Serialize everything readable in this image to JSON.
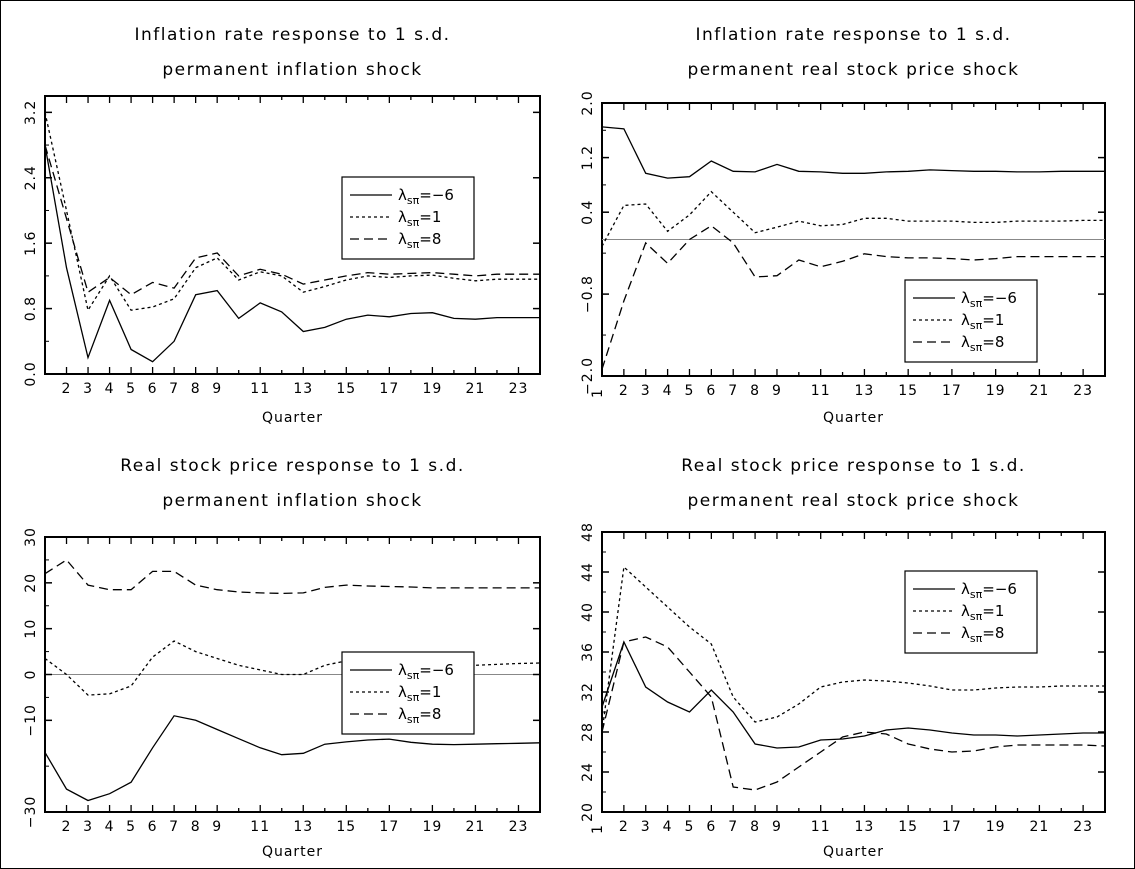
{
  "chart_data": [
    {
      "type": "line",
      "title": [
        "Inflation rate response to 1 s.d.",
        "permanent inflation shock"
      ],
      "xlabel": "Quarter",
      "ylabel": "",
      "x": [
        1,
        2,
        3,
        4,
        5,
        6,
        7,
        8,
        9,
        10,
        11,
        12,
        13,
        14,
        15,
        16,
        17,
        18,
        19,
        20,
        21,
        22,
        23,
        24
      ],
      "xticks": [
        2,
        3,
        4,
        5,
        6,
        7,
        8,
        9,
        11,
        13,
        15,
        17,
        19,
        21,
        23
      ],
      "xlim": [
        1,
        24
      ],
      "ylim": [
        0,
        3.4
      ],
      "yticks": [
        "0.0",
        "0.8",
        "1.6",
        "2.4",
        "3.2"
      ],
      "zero_line": false,
      "legend": {
        "position": "right-middle"
      },
      "series": [
        {
          "name": "λsπ=−6",
          "dash": "solid",
          "values": [
            2.8,
            1.3,
            0.2,
            0.9,
            0.3,
            0.15,
            0.4,
            0.97,
            1.02,
            0.68,
            0.87,
            0.76,
            0.52,
            0.57,
            0.67,
            0.72,
            0.7,
            0.74,
            0.75,
            0.68,
            0.67,
            0.69,
            0.69,
            0.69
          ]
        },
        {
          "name": "λsπ=1",
          "dash": "short",
          "values": [
            3.2,
            2.0,
            0.78,
            1.2,
            0.78,
            0.82,
            0.92,
            1.3,
            1.42,
            1.15,
            1.25,
            1.2,
            1.0,
            1.07,
            1.15,
            1.2,
            1.18,
            1.2,
            1.21,
            1.17,
            1.14,
            1.16,
            1.16,
            1.16
          ]
        },
        {
          "name": "λsπ=8",
          "dash": "long",
          "values": [
            2.8,
            1.9,
            1.0,
            1.18,
            0.97,
            1.12,
            1.05,
            1.42,
            1.48,
            1.2,
            1.28,
            1.22,
            1.1,
            1.15,
            1.2,
            1.24,
            1.22,
            1.23,
            1.24,
            1.22,
            1.2,
            1.22,
            1.22,
            1.22
          ]
        }
      ]
    },
    {
      "type": "line",
      "title": [
        "Inflation rate response to 1 s.d.",
        "permanent real stock price shock"
      ],
      "xlabel": "Quarter",
      "ylabel": "",
      "x": [
        1,
        2,
        3,
        4,
        5,
        6,
        7,
        8,
        9,
        10,
        11,
        12,
        13,
        14,
        15,
        16,
        17,
        18,
        19,
        20,
        21,
        22,
        23,
        24
      ],
      "xticks": [
        1,
        2,
        3,
        4,
        5,
        6,
        7,
        8,
        9,
        11,
        13,
        15,
        17,
        19,
        21,
        23
      ],
      "xlim": [
        1,
        24
      ],
      "ylim": [
        -2.0,
        2.0
      ],
      "yticks": [
        "−2.0",
        "−0.8",
        "0.4",
        "1.2",
        "2.0"
      ],
      "zero_line": true,
      "legend": {
        "position": "bottom-right"
      },
      "series": [
        {
          "name": "λsπ=−6",
          "dash": "solid",
          "values": [
            1.65,
            1.62,
            0.97,
            0.9,
            0.92,
            1.15,
            1.0,
            0.99,
            1.1,
            1.0,
            0.99,
            0.97,
            0.97,
            0.99,
            1.0,
            1.02,
            1.01,
            1.0,
            1.0,
            0.99,
            0.99,
            1.0,
            1.0,
            1.0
          ]
        },
        {
          "name": "λsπ=1",
          "dash": "short",
          "values": [
            -0.1,
            0.5,
            0.52,
            0.12,
            0.36,
            0.7,
            0.4,
            0.1,
            0.18,
            0.27,
            0.2,
            0.22,
            0.31,
            0.31,
            0.27,
            0.27,
            0.27,
            0.25,
            0.25,
            0.27,
            0.27,
            0.27,
            0.28,
            0.28
          ]
        },
        {
          "name": "λsπ=8",
          "dash": "long",
          "values": [
            -1.9,
            -0.9,
            -0.05,
            -0.35,
            0.0,
            0.2,
            -0.05,
            -0.55,
            -0.53,
            -0.3,
            -0.4,
            -0.32,
            -0.21,
            -0.25,
            -0.27,
            -0.27,
            -0.28,
            -0.3,
            -0.28,
            -0.25,
            -0.25,
            -0.25,
            -0.25,
            -0.25
          ]
        }
      ]
    },
    {
      "type": "line",
      "title": [
        "Real stock price response to 1 s.d.",
        "permanent inflation shock"
      ],
      "xlabel": "Quarter",
      "ylabel": "",
      "x": [
        1,
        2,
        3,
        4,
        5,
        6,
        7,
        8,
        9,
        10,
        11,
        12,
        13,
        14,
        15,
        16,
        17,
        18,
        19,
        20,
        21,
        22,
        23,
        24
      ],
      "xticks": [
        2,
        3,
        4,
        5,
        6,
        7,
        8,
        9,
        11,
        13,
        15,
        17,
        19,
        21,
        23
      ],
      "xlim": [
        1,
        24
      ],
      "ylim": [
        -30,
        30
      ],
      "yticks": [
        "−30",
        "−10",
        "0",
        "10",
        "20",
        "30"
      ],
      "zero_line": true,
      "legend": {
        "position": "right-middle"
      },
      "series": [
        {
          "name": "λsπ=−6",
          "dash": "solid",
          "values": [
            -17,
            -25,
            -27.5,
            -26,
            -23.5,
            -16,
            -9,
            -10,
            -12,
            -14,
            -16,
            -17.5,
            -17.2,
            -15.2,
            -14.7,
            -14.3,
            -14.1,
            -14.8,
            -15.2,
            -15.3,
            -15.2,
            -15.1,
            -15.0,
            -14.9
          ]
        },
        {
          "name": "λsπ=1",
          "dash": "short",
          "values": [
            3.5,
            0,
            -4.5,
            -4.2,
            -2.5,
            3.8,
            7.3,
            5,
            3.5,
            2,
            1,
            0,
            0,
            2,
            3,
            3,
            2.5,
            2.3,
            2,
            2,
            2,
            2.2,
            2.4,
            2.5
          ]
        },
        {
          "name": "λsπ=8",
          "dash": "long",
          "values": [
            22,
            25,
            19.5,
            18.5,
            18.5,
            22.5,
            22.5,
            19.5,
            18.5,
            18,
            17.8,
            17.7,
            17.8,
            19,
            19.5,
            19.3,
            19.2,
            19.1,
            18.9,
            18.9,
            18.9,
            18.9,
            18.9,
            18.9
          ]
        }
      ]
    },
    {
      "type": "line",
      "title": [
        "Real stock price response to 1 s.d.",
        "permanent real stock price shock"
      ],
      "xlabel": "Quarter",
      "ylabel": "",
      "x": [
        1,
        2,
        3,
        4,
        5,
        6,
        7,
        8,
        9,
        10,
        11,
        12,
        13,
        14,
        15,
        16,
        17,
        18,
        19,
        20,
        21,
        22,
        23,
        24
      ],
      "xticks": [
        1,
        2,
        3,
        4,
        5,
        6,
        7,
        8,
        9,
        11,
        13,
        15,
        17,
        19,
        21,
        23
      ],
      "xlim": [
        1,
        24
      ],
      "ylim": [
        20,
        48
      ],
      "yticks": [
        "20",
        "24",
        "28",
        "32",
        "36",
        "40",
        "44",
        "48"
      ],
      "zero_line": false,
      "legend": {
        "position": "top-right"
      },
      "series": [
        {
          "name": "λsπ=−6",
          "dash": "solid",
          "values": [
            30.5,
            37,
            32.5,
            31,
            30,
            32.2,
            30,
            26.8,
            26.4,
            26.5,
            27.2,
            27.3,
            27.6,
            28.2,
            28.4,
            28.2,
            27.9,
            27.7,
            27.7,
            27.6,
            27.7,
            27.8,
            27.9,
            27.9
          ]
        },
        {
          "name": "λsπ=1",
          "dash": "short",
          "values": [
            28,
            44.5,
            42.5,
            40.5,
            38.5,
            36.8,
            31.5,
            29,
            29.5,
            30.8,
            32.5,
            33,
            33.2,
            33.1,
            32.9,
            32.6,
            32.2,
            32.2,
            32.4,
            32.5,
            32.5,
            32.6,
            32.6,
            32.6
          ]
        },
        {
          "name": "λsπ=8",
          "dash": "long",
          "values": [
            28,
            37,
            37.5,
            36.5,
            34,
            31.5,
            22.5,
            22.2,
            23,
            24.5,
            26,
            27.5,
            28,
            27.8,
            26.8,
            26.3,
            26,
            26.1,
            26.5,
            26.7,
            26.7,
            26.7,
            26.7,
            26.6
          ]
        }
      ]
    }
  ]
}
